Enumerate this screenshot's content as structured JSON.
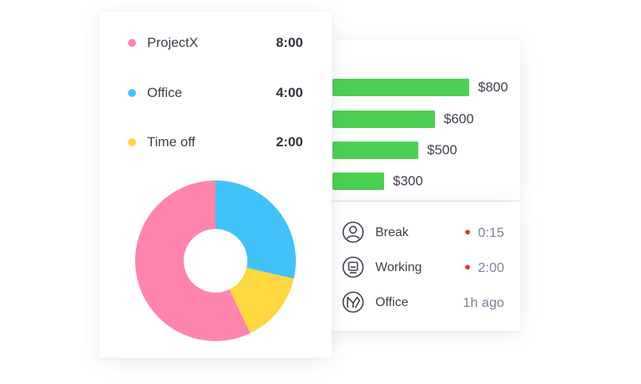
{
  "summary": {
    "entries": [
      {
        "name": "ProjectX",
        "time": "8:00",
        "color": "#ff85ad"
      },
      {
        "name": "Office",
        "time": "4:00",
        "color": "#42c2fa"
      },
      {
        "name": "Time off",
        "time": "2:00",
        "color": "#ffd740"
      }
    ]
  },
  "chart_data": [
    {
      "type": "pie",
      "labels": [
        "ProjectX",
        "Office",
        "Time off"
      ],
      "values": [
        8,
        4,
        2
      ],
      "colors": [
        "#ff85ad",
        "#42c2fa",
        "#ffd740"
      ]
    },
    {
      "type": "bar",
      "orientation": "horizontal",
      "categories": [
        "$800",
        "$600",
        "$500",
        "$300"
      ],
      "values": [
        800,
        600,
        500,
        300
      ],
      "color": "#4cd051"
    }
  ],
  "status": {
    "items": [
      {
        "label": "Break",
        "value": "0:15",
        "icon": "user-circle-icon",
        "indicator": true
      },
      {
        "label": "Working",
        "value": "2:00",
        "icon": "monitor-circle-icon",
        "indicator": true
      },
      {
        "label": "Office",
        "value": "1h ago",
        "icon": "office-logo-icon",
        "indicator": false
      }
    ],
    "indicator_color": "#e8343a"
  }
}
